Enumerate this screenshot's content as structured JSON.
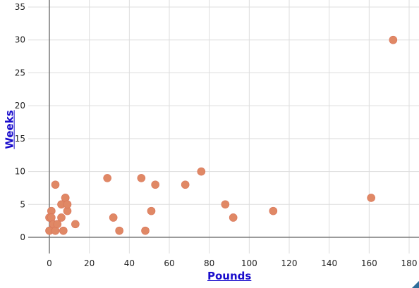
{
  "chart_data": {
    "type": "scatter",
    "xlabel": "Pounds",
    "ylabel": "Weeks",
    "xlim": [
      -10,
      185
    ],
    "ylim": [
      -2,
      35
    ],
    "x_ticks": [
      0,
      20,
      40,
      60,
      80,
      100,
      120,
      140,
      160,
      180
    ],
    "y_ticks": [
      0,
      5,
      10,
      15,
      20,
      25,
      30,
      35
    ],
    "grid": true,
    "marker_color": "#e08865",
    "points": [
      {
        "x": 0,
        "y": 1
      },
      {
        "x": 0,
        "y": 3
      },
      {
        "x": 1,
        "y": 4
      },
      {
        "x": 1,
        "y": 3
      },
      {
        "x": 2,
        "y": 2
      },
      {
        "x": 3,
        "y": 1
      },
      {
        "x": 3,
        "y": 8
      },
      {
        "x": 4,
        "y": 2
      },
      {
        "x": 6,
        "y": 3
      },
      {
        "x": 6,
        "y": 5
      },
      {
        "x": 7,
        "y": 1
      },
      {
        "x": 8,
        "y": 6
      },
      {
        "x": 8,
        "y": 6
      },
      {
        "x": 9,
        "y": 4
      },
      {
        "x": 9,
        "y": 5
      },
      {
        "x": 13,
        "y": 2
      },
      {
        "x": 29,
        "y": 9
      },
      {
        "x": 32,
        "y": 3
      },
      {
        "x": 35,
        "y": 1
      },
      {
        "x": 46,
        "y": 9
      },
      {
        "x": 48,
        "y": 1
      },
      {
        "x": 51,
        "y": 4
      },
      {
        "x": 53,
        "y": 8
      },
      {
        "x": 68,
        "y": 8
      },
      {
        "x": 76,
        "y": 10
      },
      {
        "x": 88,
        "y": 5
      },
      {
        "x": 92,
        "y": 3
      },
      {
        "x": 112,
        "y": 4
      },
      {
        "x": 161,
        "y": 6
      },
      {
        "x": 172,
        "y": 30
      }
    ]
  }
}
